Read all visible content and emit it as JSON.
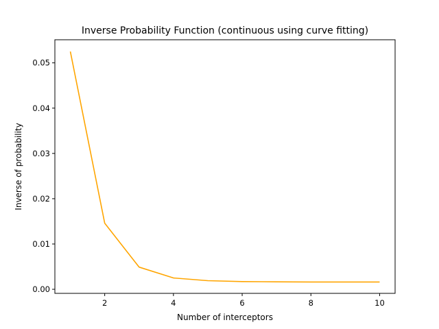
{
  "chart_data": {
    "type": "line",
    "title": "Inverse Probability Function (continuous using curve fitting)",
    "xlabel": "Number of interceptors",
    "ylabel": "Inverse of probability",
    "xlim": [
      0.55,
      10.45
    ],
    "ylim": [
      -0.0009,
      0.0551
    ],
    "xticks": [
      2,
      4,
      6,
      8,
      10
    ],
    "xtick_labels": [
      "2",
      "4",
      "6",
      "8",
      "10"
    ],
    "yticks": [
      0.0,
      0.01,
      0.02,
      0.03,
      0.04,
      0.05
    ],
    "ytick_labels": [
      "0.00",
      "0.01",
      "0.02",
      "0.03",
      "0.04",
      "0.05"
    ],
    "grid": false,
    "legend": "none",
    "series": [
      {
        "color": "#ffa500",
        "x": [
          1,
          2,
          3,
          4,
          5,
          6,
          7,
          8,
          9,
          10
        ],
        "y": [
          0.0525,
          0.0146,
          0.0049,
          0.0025,
          0.0019,
          0.0017,
          0.00165,
          0.0016,
          0.0016,
          0.0016
        ]
      }
    ]
  }
}
